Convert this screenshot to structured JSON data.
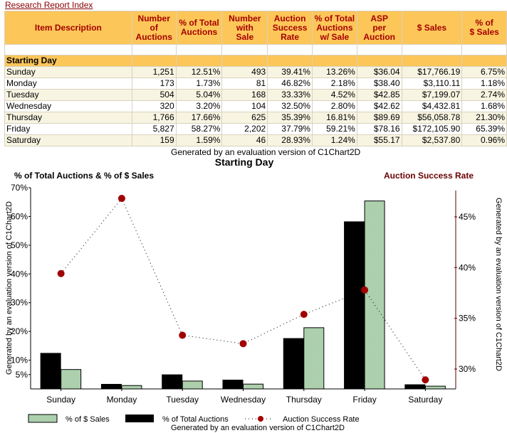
{
  "header": {
    "report_link": "Research Report Index"
  },
  "table": {
    "columns": [
      "Item Description",
      "Number of Auctions",
      "% of Total Auctions",
      "Number with Sale",
      "Auction Success Rate",
      "% of Total Auctions w/ Sale",
      "ASP per Auction",
      "$ Sales",
      "% of $ Sales"
    ],
    "column_lines": [
      [
        "Item Description"
      ],
      [
        "Number",
        "of",
        "Auctions"
      ],
      [
        "% of Total",
        "Auctions"
      ],
      [
        "Number",
        "with",
        "Sale"
      ],
      [
        "Auction",
        "Success",
        "Rate"
      ],
      [
        "% of Total",
        "Auctions",
        "w/ Sale"
      ],
      [
        "ASP",
        "per",
        "Auction"
      ],
      [
        "$ Sales"
      ],
      [
        "% of",
        "$ Sales"
      ]
    ],
    "section_label": "Starting Day",
    "rows": [
      [
        "Sunday",
        "1,251",
        "12.51%",
        "493",
        "39.41%",
        "13.26%",
        "$36.04",
        "$17,766.19",
        "6.75%"
      ],
      [
        "Monday",
        "173",
        "1.73%",
        "81",
        "46.82%",
        "2.18%",
        "$38.40",
        "$3,110.11",
        "1.18%"
      ],
      [
        "Tuesday",
        "504",
        "5.04%",
        "168",
        "33.33%",
        "4.52%",
        "$42.85",
        "$7,199.07",
        "2.74%"
      ],
      [
        "Wednesday",
        "320",
        "3.20%",
        "104",
        "32.50%",
        "2.80%",
        "$42.62",
        "$4,432.81",
        "1.68%"
      ],
      [
        "Thursday",
        "1,766",
        "17.66%",
        "625",
        "35.39%",
        "16.81%",
        "$89.69",
        "$56,058.78",
        "21.30%"
      ],
      [
        "Friday",
        "5,827",
        "58.27%",
        "2,202",
        "37.79%",
        "59.21%",
        "$78.16",
        "$172,105.90",
        "65.39%"
      ],
      [
        "Saturday",
        "159",
        "1.59%",
        "46",
        "28.93%",
        "1.24%",
        "$55.17",
        "$2,537.80",
        "0.96%"
      ]
    ],
    "footer_note": "Generated by an evaluation version of C1Chart2D"
  },
  "colors": {
    "header_bg": "#fcc659",
    "header_text": "#a50000",
    "row_alt_bg": "#f7f4e1",
    "link": "#8b0000",
    "bar_auctions": "#000000",
    "bar_sales": "#b8dcb8",
    "line_marker": "#a00000",
    "right_axis": "#5a0000"
  },
  "chart_data": {
    "type": "bar",
    "title": "Starting Day",
    "left_axis_title": "% of Total Auctions & % of $ Sales",
    "right_axis_title": "Auction Success Rate",
    "categories": [
      "Sunday",
      "Monday",
      "Tuesday",
      "Wednesday",
      "Thursday",
      "Friday",
      "Saturday"
    ],
    "series": [
      {
        "name": "% of Total Auctions",
        "type": "bar",
        "axis": "left",
        "values": [
          12.51,
          1.73,
          5.04,
          3.2,
          17.66,
          58.27,
          1.59
        ]
      },
      {
        "name": "% of $ Sales",
        "type": "bar",
        "axis": "left",
        "values": [
          6.75,
          1.18,
          2.74,
          1.68,
          21.3,
          65.39,
          0.96
        ]
      },
      {
        "name": "Auction Success Rate",
        "type": "line",
        "axis": "right",
        "values": [
          39.41,
          46.82,
          33.33,
          32.5,
          35.39,
          37.79,
          28.93
        ]
      }
    ],
    "left_axis": {
      "ylim": [
        0,
        70
      ],
      "ticks": [
        "5%",
        "10%",
        "20%",
        "30%",
        "40%",
        "50%",
        "60%",
        "70%"
      ],
      "tick_values": [
        5,
        10,
        20,
        30,
        40,
        50,
        60,
        70
      ]
    },
    "right_axis": {
      "ylim": [
        28.1,
        48
      ],
      "ticks": [
        "30%",
        "35%",
        "40%",
        "45%"
      ],
      "tick_values": [
        30,
        35,
        40,
        45
      ]
    },
    "legend": {
      "position": "bottom",
      "entries": [
        "% of $ Sales",
        "% of Total Auctions",
        "Auction Success Rate"
      ]
    },
    "watermark": "Generated by an evaluation version of C1Chart2D",
    "grid": false
  }
}
